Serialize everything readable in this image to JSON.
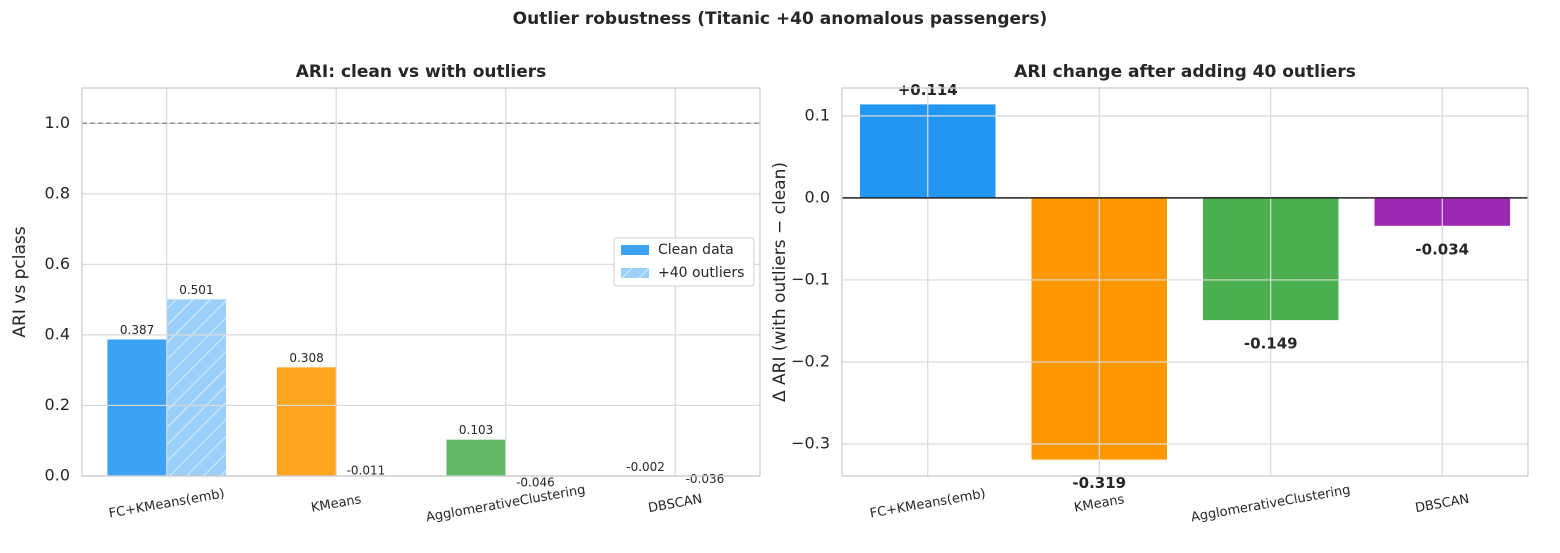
{
  "title": "Outlier robustness (Titanic +40 anomalous passengers)",
  "chart_data": [
    {
      "type": "grouped-bar",
      "title": "ARI: clean vs with outliers",
      "ylabel": "ARI vs pclass",
      "categories": [
        "FC+KMeans(emb)",
        "KMeans",
        "AgglomerativeClustering",
        "DBSCAN"
      ],
      "category_colors": [
        "#2196f3",
        "#ff9800",
        "#4caf50",
        "#9c27b0"
      ],
      "series": [
        {
          "name": "Clean data",
          "color": "#2196f3",
          "values": [
            0.387,
            0.308,
            0.103,
            -0.002
          ]
        },
        {
          "name": "+40 outliers",
          "color": "#2196f3",
          "hatch": true,
          "values": [
            0.501,
            -0.011,
            -0.046,
            -0.036
          ]
        }
      ],
      "ylim": [
        0,
        1.1
      ],
      "yticks": [
        {
          "value": 0,
          "label": "0.0"
        },
        0.2,
        0.4,
        0.6,
        0.8,
        {
          "value": 1,
          "label": "1.0"
        }
      ],
      "reference_line": 1,
      "grid": true,
      "legend": "center right"
    },
    {
      "type": "bar",
      "title": "ARI change after adding 40 outliers",
      "ylabel": "Δ ARI (with outliers − clean)",
      "categories": [
        "FC+KMeans(emb)",
        "KMeans",
        "AgglomerativeClustering",
        "DBSCAN"
      ],
      "category_colors": [
        "#2196f3",
        "#ff9800",
        "#4caf50",
        "#9c27b0"
      ],
      "values": [
        0.114,
        -0.319,
        -0.149,
        -0.034
      ],
      "value_labels": [
        "+0.114",
        "-0.319",
        "-0.149",
        "-0.034"
      ],
      "ylim": [
        -0.339,
        0.134
      ],
      "yticks": [
        {
          "value": -0.3,
          "label": "−0.3"
        },
        {
          "value": -0.2,
          "label": "−0.2"
        },
        {
          "value": -0.1,
          "label": "−0.1"
        },
        {
          "value": 0,
          "label": "0.0"
        },
        0.1
      ],
      "zero_line": true,
      "grid": true
    }
  ]
}
